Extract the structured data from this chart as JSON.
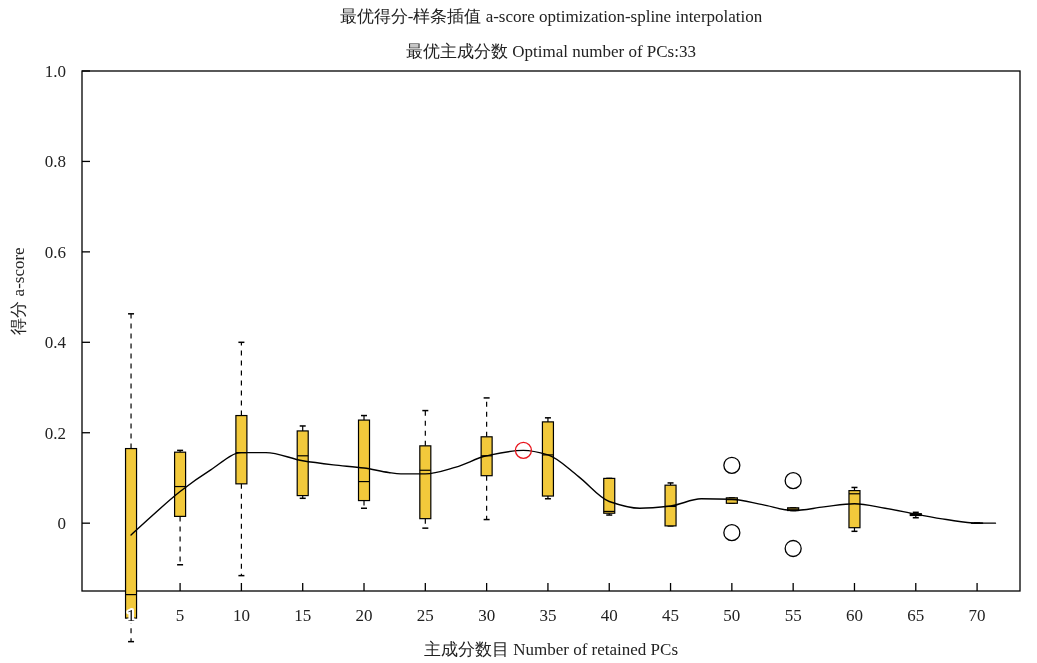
{
  "chart_data": {
    "type": "box",
    "title": "最优得分-样条插值 a-score optimization-spline interpolation",
    "subtitle": "最优主成分数 Optimal number of PCs:33",
    "xlabel": "主成分数目 Number of retained PCs",
    "ylabel": "得分 a-score",
    "x": [
      1,
      5,
      10,
      15,
      20,
      25,
      30,
      35,
      40,
      45,
      50,
      55,
      60,
      65,
      70
    ],
    "color": "#f2c93b",
    "boxes": [
      {
        "low": -0.262,
        "q1": -0.21,
        "median": -0.158,
        "q3": 0.165,
        "high": 0.463
      },
      {
        "low": -0.092,
        "q1": 0.015,
        "median": 0.081,
        "q3": 0.157,
        "high": 0.161
      },
      {
        "low": -0.116,
        "q1": 0.087,
        "median": 0.156,
        "q3": 0.238,
        "high": 0.4
      },
      {
        "low": 0.055,
        "q1": 0.061,
        "median": 0.149,
        "q3": 0.204,
        "high": 0.215
      },
      {
        "low": 0.033,
        "q1": 0.05,
        "median": 0.092,
        "q3": 0.228,
        "high": 0.238
      },
      {
        "low": -0.011,
        "q1": 0.01,
        "median": 0.117,
        "q3": 0.171,
        "high": 0.249
      },
      {
        "low": 0.008,
        "q1": 0.105,
        "median": 0.149,
        "q3": 0.191,
        "high": 0.277
      },
      {
        "low": 0.054,
        "q1": 0.06,
        "median": 0.151,
        "q3": 0.224,
        "high": 0.233
      },
      {
        "low": 0.018,
        "q1": 0.022,
        "median": 0.026,
        "q3": 0.099,
        "high": 0.099
      },
      {
        "low": -0.006,
        "q1": -0.006,
        "median": 0.037,
        "q3": 0.084,
        "high": 0.089
      },
      {
        "low": 0.044,
        "q1": 0.044,
        "median": 0.052,
        "q3": 0.056,
        "high": 0.056,
        "outliers": [
          0.128,
          -0.021
        ]
      },
      {
        "low": 0.028,
        "q1": 0.028,
        "median": 0.031,
        "q3": 0.034,
        "high": 0.034,
        "outliers": [
          0.094,
          -0.056
        ]
      },
      {
        "low": -0.018,
        "q1": -0.01,
        "median": 0.065,
        "q3": 0.072,
        "high": 0.079
      },
      {
        "low": 0.012,
        "q1": 0.017,
        "median": 0.019,
        "q3": 0.021,
        "high": 0.024
      },
      {
        "low": 0,
        "q1": 0,
        "median": 0,
        "q3": 0,
        "high": 0
      }
    ],
    "series": [
      {
        "type": "line",
        "color": "#000000",
        "x": [
          1,
          5,
          7.5,
          10,
          12,
          15,
          17.5,
          20,
          22,
          23,
          25,
          27.5,
          30,
          33,
          35,
          37.5,
          40,
          42.5,
          45,
          47.5,
          50,
          52.5,
          55,
          57.5,
          60,
          62.5,
          65,
          67.5,
          70,
          71.5
        ],
        "values": [
          -0.026,
          0.07,
          0.118,
          0.156,
          0.156,
          0.138,
          0.129,
          0.122,
          0.112,
          0.109,
          0.109,
          0.124,
          0.149,
          0.161,
          0.151,
          0.103,
          0.048,
          0.033,
          0.038,
          0.054,
          0.053,
          0.041,
          0.028,
          0.036,
          0.043,
          0.033,
          0.02,
          0.008,
          0,
          0
        ]
      },
      {
        "type": "scatter",
        "color": "#e8141c",
        "marker": "circle",
        "x": [
          33
        ],
        "values": [
          0.161
        ]
      }
    ],
    "xlim": [
      -3,
      73.5
    ],
    "ylim": [
      -0.15,
      1.0
    ],
    "xticks": [
      1,
      5,
      10,
      15,
      20,
      25,
      30,
      35,
      40,
      45,
      50,
      55,
      60,
      65,
      70
    ],
    "yticks": [
      0,
      0.2,
      0.4,
      0.6,
      0.8,
      {
        "value": 1.0,
        "label": "1.0"
      }
    ],
    "grid": false
  }
}
